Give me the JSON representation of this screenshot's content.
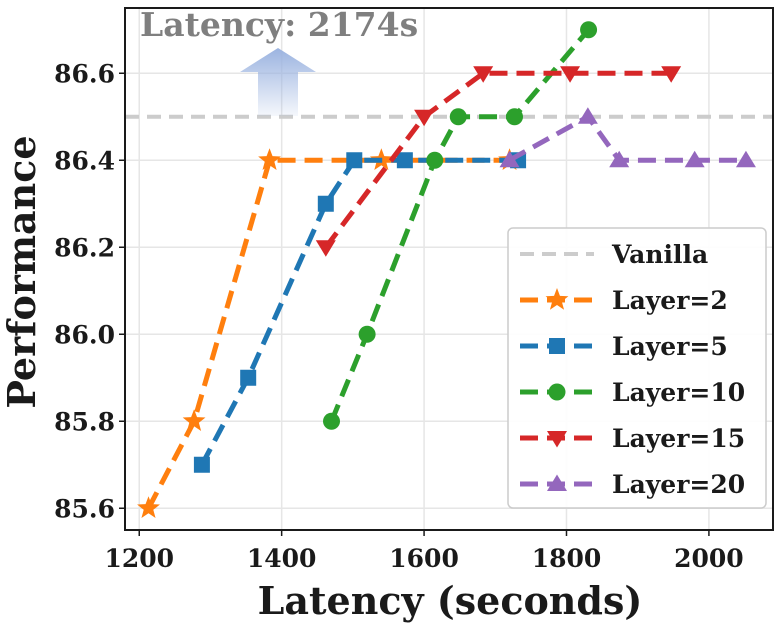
{
  "chart_data": {
    "type": "line",
    "title": "",
    "xlabel": "Latency (seconds)",
    "ylabel": "Performance",
    "xlim": [
      1180,
      2090
    ],
    "ylim": [
      85.55,
      86.75
    ],
    "xticks": [
      1200,
      1400,
      1600,
      1800,
      2000
    ],
    "yticks": [
      85.6,
      85.8,
      86.0,
      86.2,
      86.4,
      86.6
    ],
    "xtick_labels": [
      "1200",
      "1400",
      "1600",
      "1800",
      "2000"
    ],
    "ytick_labels": [
      "85.6",
      "85.8",
      "86.0",
      "86.2",
      "86.4",
      "86.6"
    ],
    "grid": true,
    "legend_position": "lower-right",
    "annotation": {
      "text": "Latency: 2174s",
      "arrow": "up",
      "arrow_color": "#9bb3e0"
    },
    "reference_line": {
      "name": "Vanilla",
      "y": 86.5,
      "color": "#cccccc",
      "style": "dashed"
    },
    "series": [
      {
        "name": "Layer=2",
        "color": "#ff7f0e",
        "marker": "star",
        "points": [
          [
            1213,
            85.6
          ],
          [
            1277,
            85.8
          ],
          [
            1383,
            86.4
          ],
          [
            1540,
            86.4
          ],
          [
            1720,
            86.4
          ]
        ]
      },
      {
        "name": "Layer=5",
        "color": "#1f77b4",
        "marker": "square",
        "points": [
          [
            1288,
            85.7
          ],
          [
            1353,
            85.9
          ],
          [
            1462,
            86.3
          ],
          [
            1502,
            86.4
          ],
          [
            1573,
            86.4
          ],
          [
            1732,
            86.4
          ]
        ]
      },
      {
        "name": "Layer=10",
        "color": "#2ca02c",
        "marker": "circle",
        "points": [
          [
            1470,
            85.8
          ],
          [
            1520,
            86.0
          ],
          [
            1615,
            86.4
          ],
          [
            1648,
            86.5
          ],
          [
            1727,
            86.5
          ],
          [
            1831,
            86.7
          ]
        ]
      },
      {
        "name": "Layer=15",
        "color": "#d62728",
        "marker": "triangle-down",
        "points": [
          [
            1462,
            86.2
          ],
          [
            1600,
            86.5
          ],
          [
            1683,
            86.6
          ],
          [
            1805,
            86.6
          ],
          [
            1947,
            86.6
          ]
        ]
      },
      {
        "name": "Layer=20",
        "color": "#9467bd",
        "marker": "triangle-up",
        "points": [
          [
            1720,
            86.4
          ],
          [
            1830,
            86.5
          ],
          [
            1874,
            86.4
          ],
          [
            1980,
            86.4
          ],
          [
            2052,
            86.4
          ]
        ]
      }
    ]
  }
}
